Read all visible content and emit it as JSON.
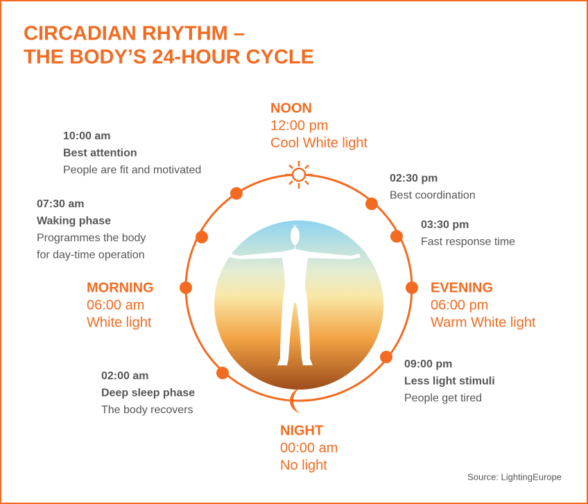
{
  "title": [
    "CIRCADIAN RHYTHM –",
    "THE BODY’S 24-HOUR CYCLE"
  ],
  "phases": [
    {
      "name": "NOON",
      "time": "12:00 pm",
      "light": "Cool White light"
    },
    {
      "name": "MORNING",
      "time": "06:00 am",
      "light": "White light"
    },
    {
      "name": "EVENING",
      "time": "06:00 pm",
      "light": "Warm White light"
    },
    {
      "name": "NIGHT",
      "time": "00:00 am",
      "light": "No light"
    }
  ],
  "events": [
    {
      "time": "10:00 am",
      "heading": "Best attention",
      "text": [
        "People are fit and motivated"
      ]
    },
    {
      "time": "07:30 am",
      "heading": "Waking phase",
      "text": [
        "Programmes the body",
        "for day-time operation"
      ]
    },
    {
      "time": "02:30 pm",
      "text": [
        "Best coordination"
      ]
    },
    {
      "time": "03:30 pm",
      "text": [
        "Fast response time"
      ]
    },
    {
      "time": "09:00 pm",
      "heading": "Less light stimuli",
      "text": [
        "People get tired"
      ]
    },
    {
      "time": "02:00 am",
      "heading": "Deep sleep phase",
      "text": [
        "The body recovers"
      ]
    }
  ],
  "source": "Source: LightingEurope"
}
